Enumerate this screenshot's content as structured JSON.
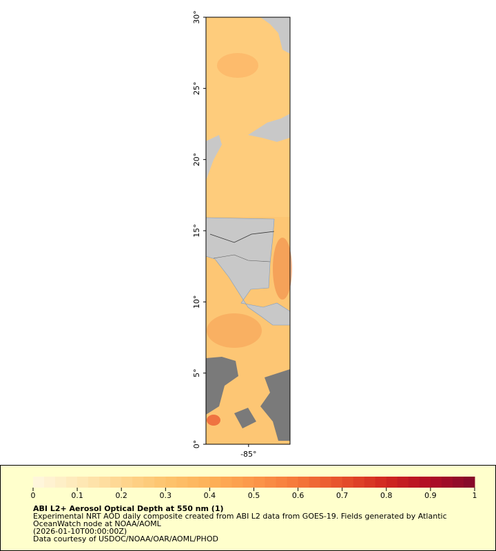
{
  "map": {
    "lat_range": [
      0,
      30
    ],
    "lon_range": [
      -88,
      -82.08
    ],
    "lat_ticks": [
      {
        "value": 0,
        "label": "0°"
      },
      {
        "value": 5,
        "label": "5°"
      },
      {
        "value": 10,
        "label": "10°"
      },
      {
        "value": 15,
        "label": "15°"
      },
      {
        "value": 20,
        "label": "20°"
      },
      {
        "value": 25,
        "label": "25°"
      },
      {
        "value": 30,
        "label": "30°"
      }
    ],
    "lon_ticks": [
      {
        "value": -85,
        "label": "-85°"
      }
    ]
  },
  "colorbar": {
    "range": [
      0,
      1
    ],
    "ticks": [
      0,
      0.1,
      0.2,
      0.3,
      0.4,
      0.5,
      0.6,
      0.7,
      0.8,
      0.9,
      1
    ],
    "colors": [
      "#fff8e0",
      "#fee9b8",
      "#fed690",
      "#fdc46e",
      "#fdb158",
      "#fc974a",
      "#f5773a",
      "#e6502c",
      "#d0261f",
      "#b00c26",
      "#820a2a"
    ]
  },
  "legend": {
    "title": "ABI L2+ Aerosol Optical Depth at 550 nm (1)",
    "lines": [
      "Experimental NRT AOD daily composite created from ABI L2 data from GOES-19. Fields generated by Atlantic",
      "OceanWatch node at NOAA/AOML",
      "(2026-01-10T00:00:00Z)",
      "Data courtesy of USDOC/NOAA/OAR/AOML/PHOD"
    ]
  }
}
